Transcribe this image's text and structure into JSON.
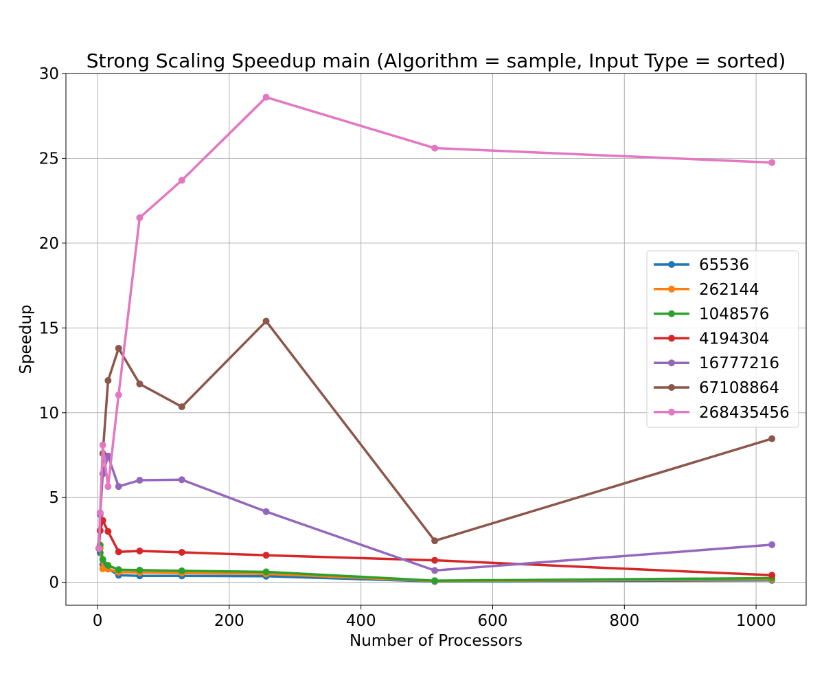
{
  "chart_data": {
    "type": "line",
    "title": "Strong Scaling Speedup main (Algorithm = sample, Input Type = sorted)",
    "xlabel": "Number of Processors",
    "ylabel": "Speedup",
    "xlim": [
      -48,
      1076
    ],
    "ylim": [
      -1.35,
      30
    ],
    "xticks": [
      0,
      200,
      400,
      600,
      800,
      1000
    ],
    "yticks": [
      0,
      5,
      10,
      15,
      20,
      25,
      30
    ],
    "grid": true,
    "legend_position": "center-right",
    "x": [
      2,
      4,
      8,
      16,
      32,
      64,
      128,
      256,
      512,
      1024
    ],
    "series": [
      {
        "name": "65536",
        "color": "#1f77b4",
        "values": [
          2.0,
          1.75,
          1.05,
          0.8,
          0.42,
          0.38,
          0.38,
          0.36,
          0.05,
          0.12
        ]
      },
      {
        "name": "262144",
        "color": "#ff7f0e",
        "values": [
          2.0,
          2.0,
          0.8,
          0.78,
          0.6,
          0.58,
          0.55,
          0.5,
          0.08,
          0.18
        ]
      },
      {
        "name": "1048576",
        "color": "#2ca02c",
        "values": [
          2.0,
          2.2,
          1.35,
          1.0,
          0.75,
          0.72,
          0.68,
          0.62,
          0.1,
          0.25
        ]
      },
      {
        "name": "4194304",
        "color": "#d62728",
        "values": [
          2.0,
          3.05,
          3.65,
          3.0,
          1.8,
          1.85,
          1.77,
          1.6,
          1.3,
          0.42
        ]
      },
      {
        "name": "16777216",
        "color": "#9467bd",
        "values": [
          2.0,
          4.0,
          6.4,
          7.45,
          5.65,
          6.02,
          6.05,
          4.17,
          0.7,
          2.22
        ]
      },
      {
        "name": "67108864",
        "color": "#8c564b",
        "values": [
          2.0,
          4.1,
          7.6,
          11.9,
          13.8,
          11.7,
          10.35,
          15.4,
          2.45,
          8.47
        ]
      },
      {
        "name": "268435456",
        "color": "#e377c2",
        "values": [
          2.0,
          4.1,
          8.1,
          5.65,
          11.05,
          21.5,
          23.7,
          28.6,
          25.6,
          24.75
        ]
      }
    ]
  }
}
